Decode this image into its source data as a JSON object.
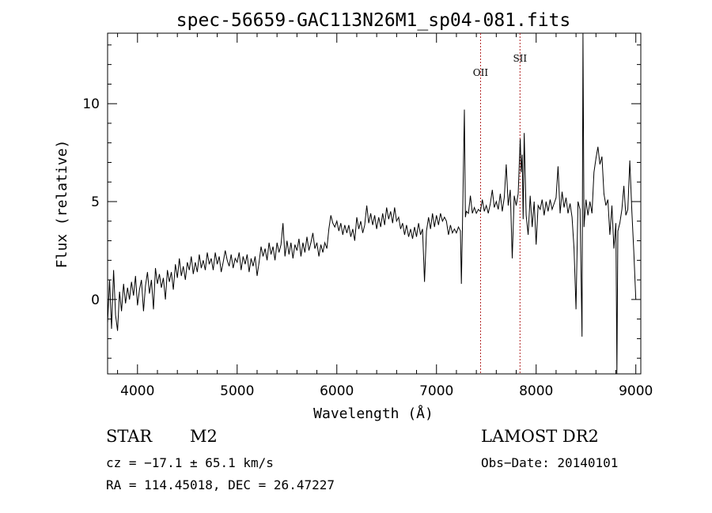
{
  "chart_data": {
    "type": "line",
    "title": "spec-56659-GAC113N26M1_sp04-081.fits",
    "xlabel": "Wavelength (Å)",
    "ylabel": "Flux (relative)",
    "xlim": [
      3700,
      9050
    ],
    "ylim": [
      -3.8,
      13.6
    ],
    "xticks": [
      4000,
      5000,
      6000,
      7000,
      8000,
      9000
    ],
    "yticks": [
      0,
      5,
      10
    ],
    "grid": false,
    "series": [
      {
        "color": "#000000",
        "points": [
          [
            3700,
            -1.2
          ],
          [
            3720,
            1.0
          ],
          [
            3740,
            -1.5
          ],
          [
            3760,
            1.5
          ],
          [
            3780,
            -0.8
          ],
          [
            3800,
            -1.6
          ],
          [
            3820,
            0.4
          ],
          [
            3840,
            -0.6
          ],
          [
            3860,
            0.8
          ],
          [
            3880,
            -0.2
          ],
          [
            3900,
            0.6
          ],
          [
            3920,
            0.0
          ],
          [
            3940,
            0.9
          ],
          [
            3960,
            0.2
          ],
          [
            3980,
            1.2
          ],
          [
            4000,
            -0.3
          ],
          [
            4020,
            0.5
          ],
          [
            4040,
            1.0
          ],
          [
            4060,
            -0.6
          ],
          [
            4080,
            0.7
          ],
          [
            4100,
            1.4
          ],
          [
            4120,
            0.3
          ],
          [
            4140,
            1.0
          ],
          [
            4160,
            -0.5
          ],
          [
            4180,
            1.6
          ],
          [
            4200,
            0.8
          ],
          [
            4220,
            1.3
          ],
          [
            4240,
            0.6
          ],
          [
            4260,
            1.1
          ],
          [
            4280,
            0.0
          ],
          [
            4300,
            1.5
          ],
          [
            4320,
            0.9
          ],
          [
            4340,
            1.4
          ],
          [
            4360,
            0.5
          ],
          [
            4380,
            1.8
          ],
          [
            4400,
            1.1
          ],
          [
            4420,
            2.1
          ],
          [
            4440,
            1.2
          ],
          [
            4460,
            1.7
          ],
          [
            4480,
            1.0
          ],
          [
            4500,
            1.9
          ],
          [
            4520,
            1.5
          ],
          [
            4540,
            2.2
          ],
          [
            4560,
            1.3
          ],
          [
            4580,
            1.9
          ],
          [
            4600,
            1.4
          ],
          [
            4620,
            2.3
          ],
          [
            4640,
            1.6
          ],
          [
            4660,
            2.0
          ],
          [
            4680,
            1.5
          ],
          [
            4700,
            2.4
          ],
          [
            4720,
            1.8
          ],
          [
            4740,
            2.1
          ],
          [
            4760,
            1.5
          ],
          [
            4780,
            2.4
          ],
          [
            4800,
            1.8
          ],
          [
            4820,
            2.2
          ],
          [
            4840,
            1.4
          ],
          [
            4860,
            1.9
          ],
          [
            4880,
            2.5
          ],
          [
            4900,
            2.0
          ],
          [
            4920,
            1.7
          ],
          [
            4940,
            2.3
          ],
          [
            4960,
            1.6
          ],
          [
            4980,
            2.1
          ],
          [
            5000,
            1.9
          ],
          [
            5020,
            2.4
          ],
          [
            5040,
            1.5
          ],
          [
            5060,
            2.2
          ],
          [
            5080,
            1.8
          ],
          [
            5100,
            2.3
          ],
          [
            5120,
            1.4
          ],
          [
            5140,
            2.1
          ],
          [
            5160,
            1.7
          ],
          [
            5180,
            2.2
          ],
          [
            5200,
            1.2
          ],
          [
            5220,
            1.9
          ],
          [
            5240,
            2.7
          ],
          [
            5260,
            2.2
          ],
          [
            5280,
            2.6
          ],
          [
            5300,
            2.0
          ],
          [
            5320,
            2.9
          ],
          [
            5340,
            2.3
          ],
          [
            5360,
            2.7
          ],
          [
            5380,
            2.0
          ],
          [
            5400,
            2.9
          ],
          [
            5420,
            2.4
          ],
          [
            5440,
            2.8
          ],
          [
            5460,
            3.9
          ],
          [
            5480,
            2.2
          ],
          [
            5500,
            3.0
          ],
          [
            5520,
            2.3
          ],
          [
            5540,
            2.9
          ],
          [
            5560,
            2.1
          ],
          [
            5580,
            2.8
          ],
          [
            5600,
            2.5
          ],
          [
            5620,
            3.1
          ],
          [
            5640,
            2.2
          ],
          [
            5660,
            2.9
          ],
          [
            5680,
            2.4
          ],
          [
            5700,
            3.2
          ],
          [
            5720,
            2.5
          ],
          [
            5740,
            2.9
          ],
          [
            5760,
            3.4
          ],
          [
            5780,
            2.6
          ],
          [
            5800,
            2.9
          ],
          [
            5820,
            2.2
          ],
          [
            5840,
            2.8
          ],
          [
            5860,
            2.4
          ],
          [
            5880,
            2.9
          ],
          [
            5900,
            2.6
          ],
          [
            5920,
            3.6
          ],
          [
            5940,
            4.3
          ],
          [
            5960,
            3.9
          ],
          [
            5980,
            3.7
          ],
          [
            6000,
            4.0
          ],
          [
            6020,
            3.5
          ],
          [
            6040,
            3.9
          ],
          [
            6060,
            3.3
          ],
          [
            6080,
            3.8
          ],
          [
            6100,
            3.4
          ],
          [
            6120,
            3.8
          ],
          [
            6140,
            3.2
          ],
          [
            6160,
            3.6
          ],
          [
            6180,
            3.0
          ],
          [
            6200,
            4.2
          ],
          [
            6220,
            3.6
          ],
          [
            6240,
            4.0
          ],
          [
            6260,
            3.4
          ],
          [
            6280,
            3.8
          ],
          [
            6300,
            4.8
          ],
          [
            6320,
            3.9
          ],
          [
            6340,
            4.4
          ],
          [
            6360,
            3.8
          ],
          [
            6380,
            4.3
          ],
          [
            6400,
            3.6
          ],
          [
            6420,
            4.2
          ],
          [
            6440,
            3.7
          ],
          [
            6460,
            4.4
          ],
          [
            6480,
            3.8
          ],
          [
            6500,
            4.7
          ],
          [
            6520,
            4.1
          ],
          [
            6540,
            4.5
          ],
          [
            6560,
            3.9
          ],
          [
            6580,
            4.7
          ],
          [
            6600,
            4.0
          ],
          [
            6620,
            4.2
          ],
          [
            6640,
            3.6
          ],
          [
            6660,
            3.9
          ],
          [
            6680,
            3.3
          ],
          [
            6700,
            3.8
          ],
          [
            6720,
            3.2
          ],
          [
            6740,
            3.6
          ],
          [
            6760,
            3.1
          ],
          [
            6780,
            3.7
          ],
          [
            6800,
            3.2
          ],
          [
            6820,
            3.9
          ],
          [
            6840,
            3.3
          ],
          [
            6860,
            3.6
          ],
          [
            6880,
            0.9
          ],
          [
            6900,
            3.5
          ],
          [
            6920,
            4.2
          ],
          [
            6940,
            3.6
          ],
          [
            6960,
            4.4
          ],
          [
            6980,
            3.7
          ],
          [
            7000,
            4.3
          ],
          [
            7020,
            3.8
          ],
          [
            7040,
            4.4
          ],
          [
            7060,
            4.0
          ],
          [
            7080,
            4.2
          ],
          [
            7100,
            4.0
          ],
          [
            7120,
            3.3
          ],
          [
            7140,
            3.8
          ],
          [
            7160,
            3.4
          ],
          [
            7180,
            3.6
          ],
          [
            7200,
            3.4
          ],
          [
            7220,
            3.7
          ],
          [
            7240,
            3.5
          ],
          [
            7250,
            0.8
          ],
          [
            7260,
            3.6
          ],
          [
            7280,
            9.7
          ],
          [
            7290,
            4.2
          ],
          [
            7300,
            4.5
          ],
          [
            7320,
            4.4
          ],
          [
            7340,
            5.3
          ],
          [
            7360,
            4.4
          ],
          [
            7380,
            4.7
          ],
          [
            7400,
            4.4
          ],
          [
            7420,
            4.6
          ],
          [
            7440,
            4.5
          ],
          [
            7460,
            5.1
          ],
          [
            7480,
            4.5
          ],
          [
            7500,
            4.8
          ],
          [
            7520,
            4.4
          ],
          [
            7540,
            4.9
          ],
          [
            7560,
            5.6
          ],
          [
            7580,
            4.7
          ],
          [
            7600,
            5.0
          ],
          [
            7620,
            4.6
          ],
          [
            7640,
            5.4
          ],
          [
            7660,
            4.5
          ],
          [
            7680,
            5.2
          ],
          [
            7700,
            6.9
          ],
          [
            7720,
            4.8
          ],
          [
            7740,
            5.6
          ],
          [
            7760,
            2.1
          ],
          [
            7780,
            5.3
          ],
          [
            7800,
            4.8
          ],
          [
            7820,
            5.4
          ],
          [
            7840,
            8.2
          ],
          [
            7850,
            6.5
          ],
          [
            7860,
            7.4
          ],
          [
            7870,
            4.1
          ],
          [
            7880,
            8.5
          ],
          [
            7900,
            4.3
          ],
          [
            7920,
            3.3
          ],
          [
            7940,
            5.3
          ],
          [
            7960,
            3.7
          ],
          [
            7980,
            5.0
          ],
          [
            8000,
            2.8
          ],
          [
            8020,
            4.8
          ],
          [
            8040,
            4.6
          ],
          [
            8060,
            5.1
          ],
          [
            8080,
            4.3
          ],
          [
            8100,
            5.0
          ],
          [
            8120,
            4.5
          ],
          [
            8140,
            5.1
          ],
          [
            8160,
            4.6
          ],
          [
            8180,
            4.9
          ],
          [
            8200,
            5.2
          ],
          [
            8220,
            6.8
          ],
          [
            8240,
            4.4
          ],
          [
            8260,
            5.5
          ],
          [
            8280,
            4.7
          ],
          [
            8300,
            5.2
          ],
          [
            8320,
            4.4
          ],
          [
            8340,
            4.9
          ],
          [
            8360,
            4.2
          ],
          [
            8380,
            2.6
          ],
          [
            8400,
            -0.5
          ],
          [
            8420,
            5.0
          ],
          [
            8440,
            4.6
          ],
          [
            8460,
            -1.9
          ],
          [
            8470,
            13.6
          ],
          [
            8480,
            3.7
          ],
          [
            8500,
            5.1
          ],
          [
            8520,
            4.3
          ],
          [
            8540,
            5.0
          ],
          [
            8560,
            4.4
          ],
          [
            8580,
            6.5
          ],
          [
            8600,
            7.2
          ],
          [
            8620,
            7.8
          ],
          [
            8640,
            6.9
          ],
          [
            8660,
            7.3
          ],
          [
            8680,
            5.4
          ],
          [
            8700,
            4.8
          ],
          [
            8720,
            5.1
          ],
          [
            8740,
            3.3
          ],
          [
            8760,
            4.8
          ],
          [
            8780,
            2.6
          ],
          [
            8800,
            3.9
          ],
          [
            8810,
            -3.8
          ],
          [
            8820,
            3.5
          ],
          [
            8840,
            3.9
          ],
          [
            8860,
            4.6
          ],
          [
            8880,
            5.8
          ],
          [
            8900,
            4.3
          ],
          [
            8920,
            4.6
          ],
          [
            8940,
            7.1
          ],
          [
            8960,
            4.5
          ],
          [
            8980,
            2.4
          ],
          [
            9000,
            0.0
          ]
        ]
      }
    ],
    "annotations": [
      {
        "label": "OII",
        "x": 7442
      },
      {
        "label": "SII",
        "x": 7838
      }
    ]
  },
  "info": {
    "object_class": "STAR",
    "subclass": "M2",
    "survey": "LAMOST DR2",
    "cz_line": "cz = −17.1 ± 65.1 km/s",
    "obs_date_line": "Obs−Date: 20140101",
    "radec_line": "RA = 114.45018, DEC =  26.47227"
  },
  "colors": {
    "spectrum": "#000000",
    "marker_line": "#b22222"
  }
}
